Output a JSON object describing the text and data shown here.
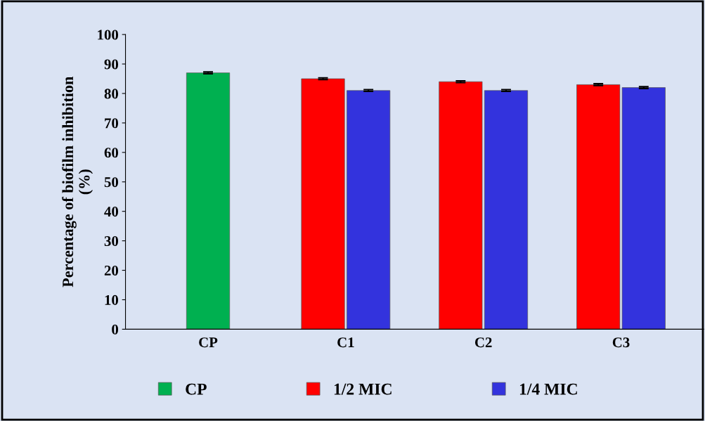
{
  "chart_data": {
    "type": "bar",
    "ylabel": "Percentage of biofilm inhibition\n(%)",
    "categories": [
      "CP",
      "C1",
      "C2",
      "C3"
    ],
    "series": [
      {
        "name": "CP",
        "color": "#00b050",
        "values": [
          87,
          null,
          null,
          null
        ],
        "errors": [
          0.3,
          null,
          null,
          null
        ]
      },
      {
        "name": "1/2 MIC",
        "color": "#ff0000",
        "values": [
          null,
          85,
          84,
          83
        ],
        "errors": [
          null,
          0.3,
          0.3,
          0.3
        ]
      },
      {
        "name": "1/4 MIC",
        "color": "#3333dd",
        "values": [
          null,
          81,
          81,
          82
        ],
        "errors": [
          null,
          0.3,
          0.3,
          0.3
        ]
      }
    ],
    "ylim": [
      0,
      100
    ],
    "yticks": [
      0,
      10,
      20,
      30,
      40,
      50,
      60,
      70,
      80,
      90,
      100
    ],
    "grid": false,
    "legend": "bottom"
  }
}
